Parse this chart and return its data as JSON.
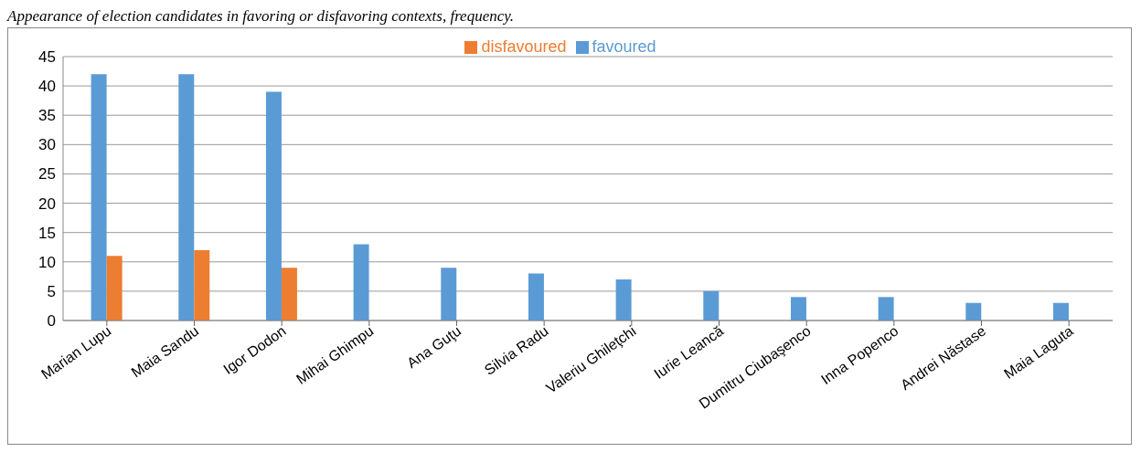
{
  "chart_data": {
    "type": "bar",
    "title": "Appearance of election candidates in favoring or disfavoring contexts, frequency.",
    "categories": [
      "Marian Lupu",
      "Maia Sandu",
      "Igor Dodon",
      "Mihai Ghimpu",
      "Ana Guţu",
      "Silvia Radu",
      "Valeriu Ghileţchi",
      "Iurie Leancă",
      "Dumitru Ciubaşenco",
      "Inna Popenco",
      "Andrei Năstase",
      "Maia Laguta"
    ],
    "series": [
      {
        "name": "favoured",
        "color": "#5b9bd5",
        "values": [
          42,
          42,
          39,
          13,
          9,
          8,
          7,
          5,
          4,
          4,
          3,
          3
        ]
      },
      {
        "name": "disfavoured",
        "color": "#ed7d31",
        "values": [
          11,
          12,
          9,
          null,
          null,
          null,
          null,
          null,
          null,
          null,
          null,
          null
        ]
      }
    ],
    "ylim": [
      0,
      45
    ],
    "yticks": [
      0,
      5,
      10,
      15,
      20,
      25,
      30,
      35,
      40,
      45
    ],
    "grid": "y",
    "legend": "top"
  }
}
